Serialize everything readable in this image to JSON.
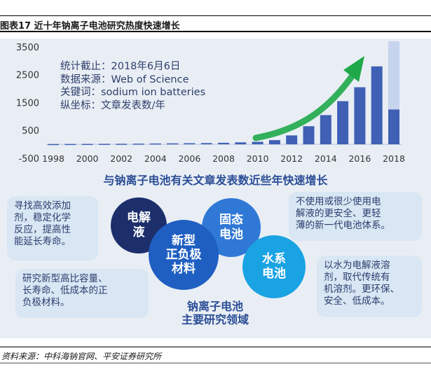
{
  "figure_title": "图表17  近十年钠离子电池研究热度快速增长",
  "info_box": {
    "lines": [
      "统计截止：2018年6月6日",
      "数据来源：Web of Science",
      "关键词：sodium ion batteries",
      "纵坐标：文章发表数/年"
    ]
  },
  "chart_caption": "与钠离子电池有关文章发表数近些年快速增长",
  "chart_data": {
    "type": "bar",
    "x": [
      1998,
      1999,
      2000,
      2001,
      2002,
      2003,
      2004,
      2005,
      2006,
      2007,
      2008,
      2009,
      2010,
      2011,
      2012,
      2013,
      2014,
      2015,
      2016,
      2017,
      2018
    ],
    "values": [
      10,
      12,
      15,
      18,
      20,
      25,
      30,
      35,
      40,
      45,
      55,
      70,
      90,
      150,
      320,
      650,
      1050,
      1550,
      2050,
      2800,
      1250
    ],
    "projection_2018": 3700,
    "ylim": [
      -500,
      3700
    ],
    "yticks": [
      -500,
      500,
      1500,
      2500,
      3500
    ],
    "xtick_labels": [
      "1998",
      "2000",
      "2002",
      "2004",
      "2006",
      "2008",
      "2010",
      "2012",
      "2014",
      "2016",
      "2018"
    ],
    "colors": {
      "bar": "#3f60b5",
      "projection": "#c7d4ee",
      "arrow": "#1ea84a"
    }
  },
  "callouts": {
    "additive": [
      "寻找高效添加",
      "剂，稳定化学",
      "反应，提高性",
      "能延长寿命。"
    ],
    "solid_state": [
      "不使用或很少使用电",
      "解液的更安全、更轻",
      "薄的新一代电池体系。"
    ],
    "cathode": [
      "研究新型高比容量、",
      "长寿命、低成本的正",
      "负极材料。"
    ],
    "aqueous": [
      "以水为电解液溶",
      "剂，取代传统有",
      "机溶剂。更环保、",
      "安全、低成本。"
    ]
  },
  "circles": {
    "electrolyte": [
      "电解",
      "液"
    ],
    "electrode": [
      "新型",
      "正负极",
      "材料"
    ],
    "solid_state": [
      "固态",
      "电池"
    ],
    "aqueous": [
      "水系",
      "电池"
    ]
  },
  "center_label": [
    "钠离子电池",
    "主要研究领域"
  ],
  "source": "资料来源：中科海钠官网、平安证券研究所",
  "colors": {
    "navy": "#1c2f6b",
    "blue": "#1f5fc2",
    "mid_blue": "#2f78d6",
    "cyan": "#1aa3e3",
    "callout_bg": "#d9e6f3",
    "caption": "#2b4e96"
  }
}
